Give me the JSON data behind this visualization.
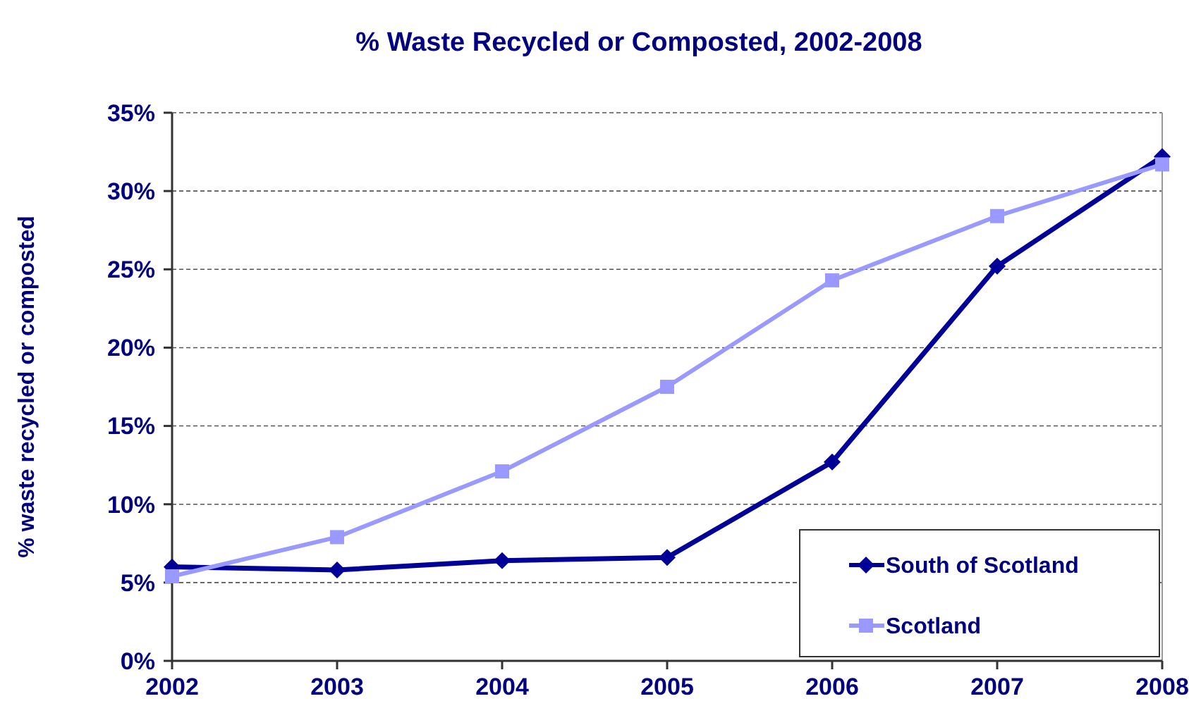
{
  "chart_data": {
    "type": "line",
    "title": "% Waste Recycled or Composted, 2002-2008",
    "ylabel": "% waste recycled or composted",
    "x": [
      2002,
      2003,
      2004,
      2005,
      2006,
      2007,
      2008
    ],
    "xlim": [
      2002,
      2008
    ],
    "xticks": [
      2002,
      2003,
      2004,
      2005,
      2006,
      2007,
      2008
    ],
    "ylim": [
      0,
      35
    ],
    "yticks": [
      {
        "value": 0,
        "label": "0%"
      },
      {
        "value": 5,
        "label": "5%"
      },
      {
        "value": 10,
        "label": "10%"
      },
      {
        "value": 15,
        "label": "15%"
      },
      {
        "value": 20,
        "label": "20%"
      },
      {
        "value": 25,
        "label": "25%"
      },
      {
        "value": 30,
        "label": "30%"
      },
      {
        "value": 35,
        "label": "35%"
      }
    ],
    "grid": "y",
    "legend": "bottom right",
    "series": [
      {
        "name": "South of Scotland",
        "color": "#000099",
        "marker": "diamond",
        "values": [
          6.0,
          5.8,
          6.4,
          6.6,
          12.7,
          25.2,
          32.2
        ]
      },
      {
        "name": "Scotland",
        "color": "#9999ff",
        "marker": "square",
        "values": [
          5.4,
          7.9,
          12.1,
          17.5,
          24.3,
          28.4,
          31.7
        ]
      }
    ]
  }
}
